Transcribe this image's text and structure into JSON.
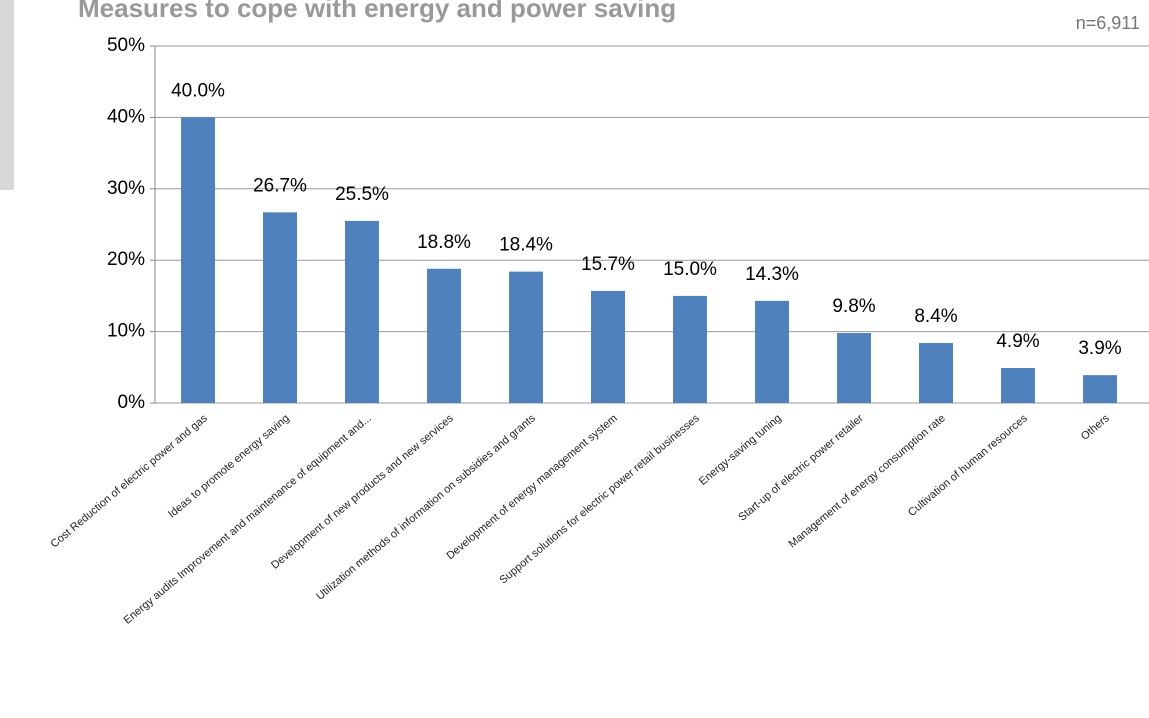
{
  "chart_data": {
    "type": "bar",
    "title": "Measures to cope with energy and power saving",
    "note": "n=6,911",
    "categories": [
      "Cost Reduction of electric power and gas",
      "Ideas to promote energy saving",
      "Energy audits Improvement and maintenance of equipment and...",
      "Development of new products and new services",
      "Utilization methods of information on subsidies and grants",
      "Development of energy management system",
      "Support solutions for electric power retail businesses",
      "Energy-saving tuning",
      "Start-up of electric power retailer",
      "Management of energy consumption rate",
      "Cultivation of human resources",
      "Others"
    ],
    "values": [
      40.0,
      26.7,
      25.5,
      18.8,
      18.4,
      15.7,
      15.0,
      14.3,
      9.8,
      8.4,
      4.9,
      3.9
    ],
    "value_labels": [
      "40.0%",
      "26.7%",
      "25.5%",
      "18.8%",
      "18.4%",
      "15.7%",
      "15.0%",
      "14.3%",
      "9.8%",
      "8.4%",
      "4.9%",
      "3.9%"
    ],
    "color": "#4f81bd",
    "ylim": [
      0,
      50
    ],
    "yticks": [
      {
        "value": 0,
        "label": "0%"
      },
      {
        "value": 10,
        "label": "10%"
      },
      {
        "value": 20,
        "label": "20%"
      },
      {
        "value": 30,
        "label": "30%"
      },
      {
        "value": 40,
        "label": "40%"
      },
      {
        "value": 50,
        "label": "50%"
      }
    ],
    "grid": true
  }
}
